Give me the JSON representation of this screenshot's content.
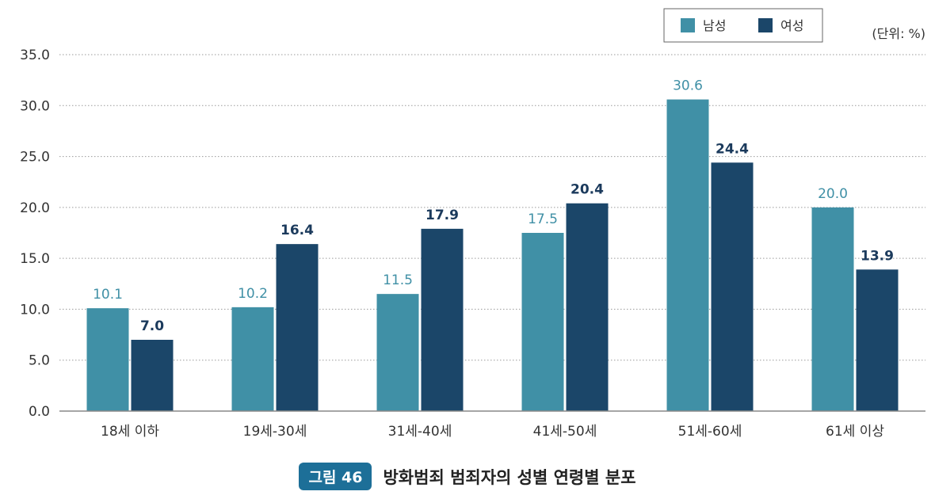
{
  "chart_data": {
    "type": "bar",
    "categories": [
      "18세 이하",
      "19세-30세",
      "31세-40세",
      "41세-50세",
      "51세-60세",
      "61세 이상"
    ],
    "series": [
      {
        "name": "남성",
        "values": [
          10.1,
          10.2,
          11.5,
          17.5,
          30.6,
          20.0
        ],
        "labels": [
          "10.1",
          "10.2",
          "11.5",
          "17.5",
          "30.6",
          "20.0"
        ]
      },
      {
        "name": "여성",
        "values": [
          7.0,
          16.4,
          17.9,
          20.4,
          24.4,
          13.9
        ],
        "labels": [
          "7.0",
          "16.4",
          "17.9",
          "20.4",
          "24.4",
          "13.9"
        ]
      }
    ],
    "ylim": [
      0,
      35
    ],
    "yticks": [
      "0.0",
      "5.0",
      "10.0",
      "15.0",
      "20.0",
      "25.0",
      "30.0",
      "35.0"
    ],
    "unit": "(단위: %)",
    "grid": true,
    "legend_position": "top-right",
    "colors": {
      "series_0": "#4090a6",
      "series_1": "#1b4669",
      "label_0": "#4090a6",
      "label_1": "#1b3a5c"
    }
  },
  "caption": {
    "badge": "그림 46",
    "title": "방화범죄 범죄자의 성별 연령별 분포"
  }
}
